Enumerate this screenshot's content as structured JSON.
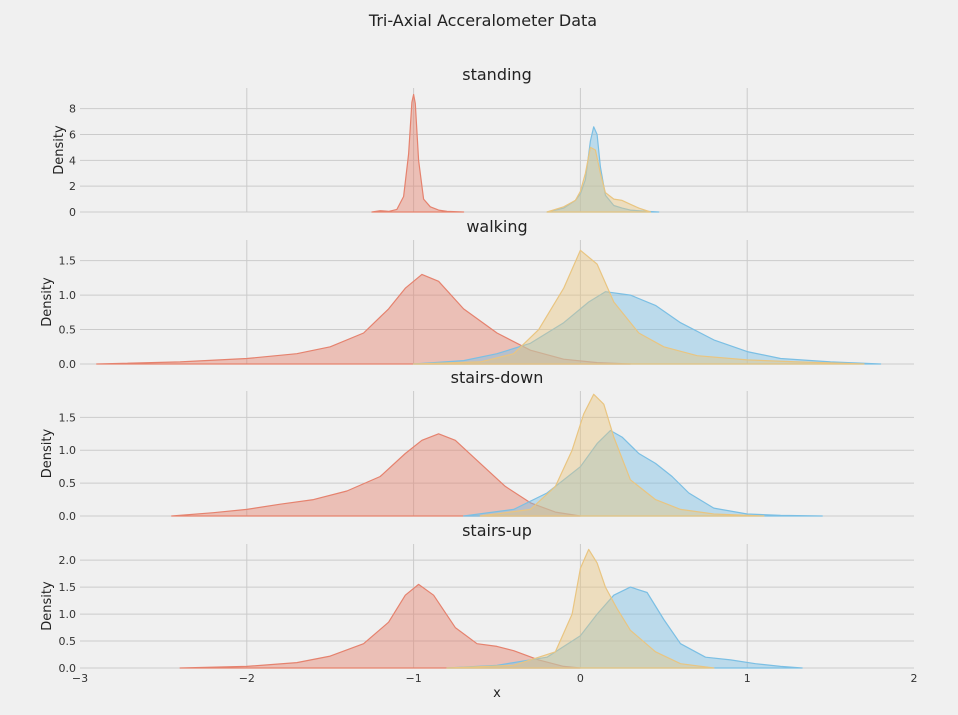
{
  "chart_data": {
    "type": "area",
    "title": "Tri-Axial Acceralometer Data",
    "xlabel": "x",
    "ylabel": "Density",
    "xlim": [
      -3,
      2
    ],
    "x_ticks": [
      -3,
      -2,
      -1,
      0,
      1,
      2
    ],
    "x_tick_labels": [
      "−3",
      "−2",
      "−1",
      "0",
      "1",
      "2"
    ],
    "grid": true,
    "legend": "none",
    "series_colors": [
      "#e5826e",
      "#7bbfe4",
      "#e9c581"
    ],
    "facets": [
      {
        "title": "standing",
        "ylim": [
          0,
          9.6
        ],
        "y_ticks": [
          0,
          2,
          4,
          6,
          8
        ],
        "y_tick_labels": [
          "0",
          "2",
          "4",
          "6",
          "8"
        ],
        "series": [
          {
            "color": "#e5826e",
            "x": [
              -1.25,
              -1.2,
              -1.15,
              -1.1,
              -1.06,
              -1.03,
              -1.01,
              -1.0,
              -0.99,
              -0.97,
              -0.94,
              -0.9,
              -0.85,
              -0.8,
              -0.7
            ],
            "y": [
              0,
              0.1,
              0.05,
              0.2,
              1.2,
              4.5,
              8.5,
              9.1,
              8.4,
              4.0,
              1.0,
              0.4,
              0.15,
              0.05,
              0
            ]
          },
          {
            "color": "#7bbfe4",
            "x": [
              -0.2,
              -0.1,
              -0.03,
              0.0,
              0.03,
              0.06,
              0.08,
              0.1,
              0.12,
              0.15,
              0.2,
              0.25,
              0.3,
              0.4,
              0.47
            ],
            "y": [
              0,
              0.3,
              0.9,
              1.4,
              2.5,
              5.5,
              6.6,
              6.0,
              3.5,
              1.3,
              0.5,
              0.3,
              0.15,
              0.05,
              0
            ]
          },
          {
            "color": "#e9c581",
            "x": [
              -0.2,
              -0.1,
              -0.03,
              0.0,
              0.03,
              0.06,
              0.09,
              0.12,
              0.15,
              0.2,
              0.25,
              0.3,
              0.35,
              0.42
            ],
            "y": [
              0,
              0.4,
              0.9,
              1.6,
              3.0,
              5.0,
              4.8,
              3.0,
              1.5,
              1.0,
              0.9,
              0.6,
              0.3,
              0
            ]
          }
        ]
      },
      {
        "title": "walking",
        "ylim": [
          0,
          1.8
        ],
        "y_ticks": [
          0.0,
          0.5,
          1.0,
          1.5
        ],
        "y_tick_labels": [
          "0.0",
          "0.5",
          "1.0",
          "1.5"
        ],
        "series": [
          {
            "color": "#e5826e",
            "x": [
              -2.9,
              -2.4,
              -2.0,
              -1.7,
              -1.5,
              -1.3,
              -1.15,
              -1.05,
              -0.95,
              -0.85,
              -0.7,
              -0.5,
              -0.3,
              -0.1,
              0.1,
              0.3
            ],
            "y": [
              0,
              0.03,
              0.08,
              0.15,
              0.25,
              0.45,
              0.8,
              1.1,
              1.3,
              1.2,
              0.8,
              0.45,
              0.2,
              0.07,
              0.02,
              0
            ]
          },
          {
            "color": "#7bbfe4",
            "x": [
              -1.0,
              -0.7,
              -0.5,
              -0.3,
              -0.1,
              0.05,
              0.15,
              0.3,
              0.45,
              0.6,
              0.8,
              1.0,
              1.2,
              1.5,
              1.8
            ],
            "y": [
              0,
              0.05,
              0.15,
              0.3,
              0.6,
              0.9,
              1.05,
              1.0,
              0.85,
              0.6,
              0.35,
              0.18,
              0.08,
              0.03,
              0
            ]
          },
          {
            "color": "#e9c581",
            "x": [
              -1.0,
              -0.6,
              -0.4,
              -0.25,
              -0.1,
              0.0,
              0.1,
              0.2,
              0.35,
              0.5,
              0.7,
              1.0,
              1.3,
              1.7
            ],
            "y": [
              0,
              0.03,
              0.15,
              0.5,
              1.1,
              1.65,
              1.45,
              0.9,
              0.45,
              0.25,
              0.12,
              0.06,
              0.03,
              0
            ]
          }
        ]
      },
      {
        "title": "stairs-down",
        "ylim": [
          0,
          1.9
        ],
        "y_ticks": [
          0.0,
          0.5,
          1.0,
          1.5
        ],
        "y_tick_labels": [
          "0.0",
          "0.5",
          "1.0",
          "1.5"
        ],
        "series": [
          {
            "color": "#e5826e",
            "x": [
              -2.45,
              -2.2,
              -2.0,
              -1.8,
              -1.6,
              -1.4,
              -1.2,
              -1.05,
              -0.95,
              -0.85,
              -0.75,
              -0.6,
              -0.45,
              -0.3,
              -0.15,
              0.0
            ],
            "y": [
              0,
              0.05,
              0.1,
              0.18,
              0.25,
              0.38,
              0.6,
              0.95,
              1.15,
              1.25,
              1.15,
              0.8,
              0.45,
              0.2,
              0.06,
              0
            ]
          },
          {
            "color": "#7bbfe4",
            "x": [
              -0.7,
              -0.4,
              -0.2,
              0.0,
              0.1,
              0.18,
              0.25,
              0.35,
              0.45,
              0.55,
              0.65,
              0.8,
              1.0,
              1.2,
              1.45
            ],
            "y": [
              0,
              0.1,
              0.35,
              0.75,
              1.1,
              1.3,
              1.2,
              0.95,
              0.8,
              0.6,
              0.35,
              0.12,
              0.03,
              0.01,
              0
            ]
          },
          {
            "color": "#e9c581",
            "x": [
              -0.6,
              -0.3,
              -0.15,
              -0.05,
              0.02,
              0.08,
              0.14,
              0.2,
              0.3,
              0.45,
              0.6,
              0.8,
              1.1
            ],
            "y": [
              0,
              0.1,
              0.45,
              1.0,
              1.55,
              1.85,
              1.7,
              1.2,
              0.55,
              0.25,
              0.1,
              0.03,
              0
            ]
          }
        ]
      },
      {
        "title": "stairs-up",
        "ylim": [
          0,
          2.3
        ],
        "y_ticks": [
          0.0,
          0.5,
          1.0,
          1.5,
          2.0
        ],
        "y_tick_labels": [
          "0.0",
          "0.5",
          "1.0",
          "1.5",
          "2.0"
        ],
        "series": [
          {
            "color": "#e5826e",
            "x": [
              -2.4,
              -2.0,
              -1.7,
              -1.5,
              -1.3,
              -1.15,
              -1.05,
              -0.97,
              -0.88,
              -0.75,
              -0.62,
              -0.5,
              -0.4,
              -0.25,
              -0.1,
              0.0
            ],
            "y": [
              0,
              0.03,
              0.1,
              0.22,
              0.45,
              0.85,
              1.35,
              1.55,
              1.35,
              0.75,
              0.45,
              0.4,
              0.32,
              0.15,
              0.03,
              0
            ]
          },
          {
            "color": "#7bbfe4",
            "x": [
              -0.8,
              -0.5,
              -0.2,
              0.0,
              0.1,
              0.2,
              0.3,
              0.4,
              0.5,
              0.6,
              0.75,
              0.9,
              1.05,
              1.2,
              1.33
            ],
            "y": [
              0,
              0.05,
              0.2,
              0.6,
              1.0,
              1.35,
              1.5,
              1.4,
              0.9,
              0.45,
              0.2,
              0.15,
              0.08,
              0.03,
              0
            ]
          },
          {
            "color": "#e9c581",
            "x": [
              -0.8,
              -0.4,
              -0.15,
              -0.05,
              0.0,
              0.05,
              0.1,
              0.15,
              0.22,
              0.3,
              0.45,
              0.6,
              0.8
            ],
            "y": [
              0,
              0.05,
              0.3,
              1.0,
              1.85,
              2.2,
              1.95,
              1.5,
              1.1,
              0.7,
              0.3,
              0.08,
              0
            ]
          }
        ]
      }
    ]
  }
}
